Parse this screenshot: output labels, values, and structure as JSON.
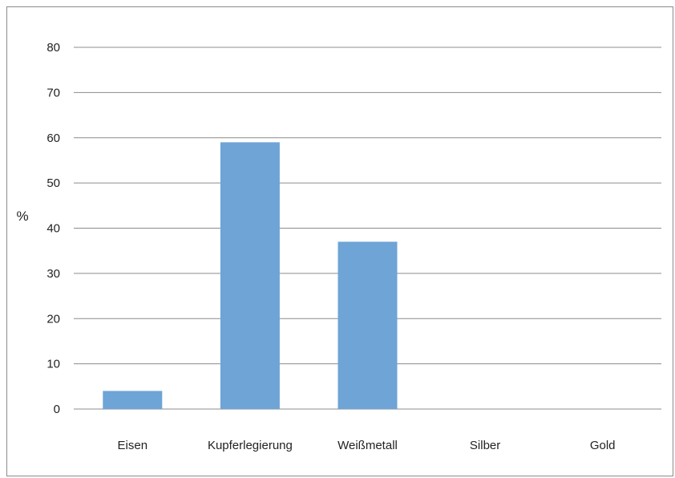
{
  "chart_data": {
    "type": "bar",
    "categories": [
      "Eisen",
      "Kupferlegierung",
      "Weißmetall",
      "Silber",
      "Gold"
    ],
    "values": [
      4,
      59,
      37,
      0,
      0
    ],
    "title": "",
    "xlabel": "",
    "ylabel": "%",
    "ylim": [
      0,
      80
    ],
    "yticks": [
      "0",
      "10",
      "20",
      "30",
      "40",
      "50",
      "60",
      "70",
      "80"
    ],
    "grid": true,
    "legend": "none",
    "bar_color": "#6ea4d6",
    "grid_color": "#8c8c8c"
  }
}
